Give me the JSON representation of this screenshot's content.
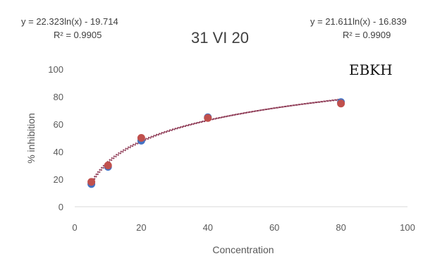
{
  "chart_data": {
    "type": "scatter",
    "title": "31 VI 20",
    "annotation": "EBKH",
    "xlabel": "Concentration",
    "ylabel": "% inhibition",
    "xlim": [
      0,
      100
    ],
    "ylim": [
      0,
      100
    ],
    "xticks": [
      "0",
      "20",
      "40",
      "60",
      "80",
      "100"
    ],
    "yticks": [
      "0",
      "20",
      "40",
      "60",
      "80",
      "100"
    ],
    "grid": false,
    "trendlines": [
      {
        "type": "logarithmic",
        "equation": "y = 22.323ln(x) - 19.714",
        "r2": "R² = 0.9905",
        "a": 22.323,
        "b": -19.714,
        "position": "top-left"
      },
      {
        "type": "logarithmic",
        "equation": "y = 21.611ln(x) - 16.839",
        "r2": "R² = 0.9909",
        "a": 21.611,
        "b": -16.839,
        "position": "top-right"
      }
    ],
    "series": [
      {
        "color": "#4472c4",
        "x": [
          5,
          10,
          20,
          40,
          80
        ],
        "y": [
          16.5,
          29,
          48,
          65,
          76
        ]
      },
      {
        "color": "#c0504d",
        "x": [
          5,
          10,
          20,
          40,
          80
        ],
        "y": [
          18,
          30,
          50,
          64.5,
          75
        ]
      }
    ],
    "trendline_color": "#8e3a55"
  }
}
